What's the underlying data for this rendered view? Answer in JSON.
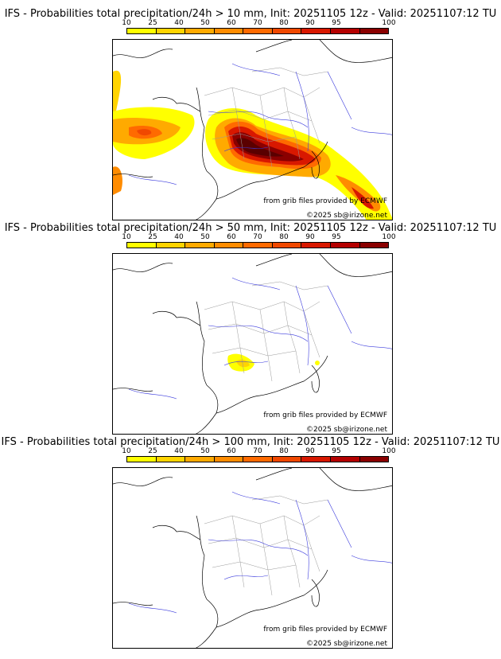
{
  "colorbar": {
    "ticks": [
      "10",
      "25",
      "40",
      "50",
      "60",
      "70",
      "80",
      "90",
      "95",
      "100"
    ],
    "colors": [
      "#ffff00",
      "#ffd400",
      "#ffaa00",
      "#ff8c00",
      "#ff6a00",
      "#f04800",
      "#d81800",
      "#b40000",
      "#8a0000",
      "#5a0000"
    ]
  },
  "panels": [
    {
      "title": "IFS - Probabilities total precipitation/24h > 10 mm, Init: 20251105 12z - Valid: 20251107:12 TU"
    },
    {
      "title": "IFS - Probabilities total precipitation/24h > 50 mm, Init: 20251105 12z - Valid: 20251107:12 TU"
    },
    {
      "title": "IFS - Probabilities total precipitation/24h > 100 mm, Init: 20251105 12z - Valid: 20251107:12 TU"
    }
  ],
  "credits": {
    "source": "from grib files provided by ECMWF",
    "copyright": "©2025 sb@irizone.net"
  }
}
